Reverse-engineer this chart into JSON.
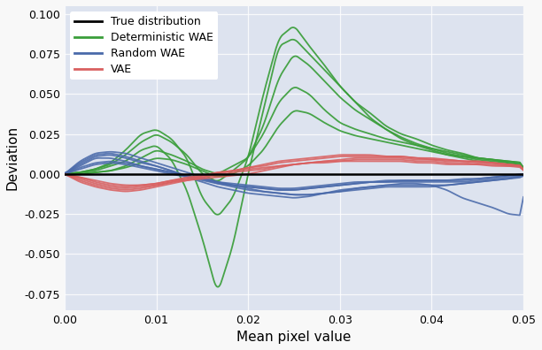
{
  "title": "",
  "xlabel": "Mean pixel value",
  "ylabel": "Deviation",
  "xlim": [
    0.0,
    0.05
  ],
  "ylim": [
    -0.085,
    0.105
  ],
  "yticks": [
    -0.075,
    -0.05,
    -0.025,
    0.0,
    0.025,
    0.05,
    0.075,
    0.1
  ],
  "xticks": [
    0.0,
    0.01,
    0.02,
    0.03,
    0.04,
    0.05
  ],
  "bg_color": "#dde3ef",
  "colors": {
    "true": "#000000",
    "det_wae": "#3a9e3a",
    "rand_wae": "#4a6aaa",
    "vae": "#d96060"
  },
  "legend_labels": [
    "True distribution",
    "Deterministic WAE",
    "Random WAE",
    "VAE"
  ],
  "figsize": [
    6.12,
    3.96
  ],
  "dpi": 100,
  "green_curves": [
    [
      0.0,
      0.001,
      0.002,
      0.005,
      0.008,
      0.015,
      0.018,
      0.009,
      -0.01,
      -0.04,
      -0.075,
      -0.045,
      0.0,
      0.04,
      0.08,
      0.085,
      0.075,
      0.065,
      0.055,
      0.045,
      0.035,
      0.028,
      0.022,
      0.018,
      0.015,
      0.012,
      0.01,
      0.008,
      0.007,
      0.006,
      0.005
    ],
    [
      0.0,
      0.001,
      0.003,
      0.007,
      0.015,
      0.025,
      0.028,
      0.022,
      0.01,
      -0.015,
      -0.027,
      -0.015,
      0.01,
      0.05,
      0.085,
      0.093,
      0.08,
      0.068,
      0.055,
      0.045,
      0.038,
      0.03,
      0.025,
      0.022,
      0.018,
      0.015,
      0.013,
      0.01,
      0.009,
      0.007,
      0.006
    ],
    [
      0.0,
      0.0,
      0.001,
      0.002,
      0.005,
      0.01,
      0.015,
      0.012,
      0.008,
      0.003,
      0.0,
      0.005,
      0.01,
      0.025,
      0.045,
      0.055,
      0.05,
      0.04,
      0.032,
      0.028,
      0.025,
      0.022,
      0.02,
      0.018,
      0.016,
      0.014,
      0.012,
      0.01,
      0.009,
      0.008,
      0.007
    ],
    [
      0.0,
      0.001,
      0.003,
      0.006,
      0.012,
      0.02,
      0.025,
      0.02,
      0.012,
      0.0,
      -0.005,
      0.002,
      0.01,
      0.03,
      0.06,
      0.075,
      0.068,
      0.058,
      0.048,
      0.04,
      0.034,
      0.028,
      0.023,
      0.019,
      0.016,
      0.013,
      0.011,
      0.009,
      0.008,
      0.007,
      0.006
    ],
    [
      0.0,
      0.0,
      0.001,
      0.002,
      0.004,
      0.007,
      0.01,
      0.009,
      0.006,
      0.002,
      -0.002,
      0.0,
      0.005,
      0.015,
      0.03,
      0.04,
      0.038,
      0.032,
      0.027,
      0.024,
      0.022,
      0.02,
      0.018,
      0.016,
      0.014,
      0.012,
      0.011,
      0.01,
      0.009,
      0.008,
      0.007
    ]
  ],
  "blue_curves": [
    [
      0.0,
      0.005,
      0.01,
      0.01,
      0.008,
      0.005,
      0.003,
      0.001,
      -0.001,
      -0.003,
      -0.005,
      -0.007,
      -0.008,
      -0.009,
      -0.01,
      -0.01,
      -0.009,
      -0.008,
      -0.007,
      -0.006,
      -0.005,
      -0.005,
      -0.005,
      -0.005,
      -0.005,
      -0.005,
      -0.005,
      -0.004,
      -0.003,
      -0.002,
      -0.001
    ],
    [
      0.0,
      0.007,
      0.012,
      0.013,
      0.011,
      0.008,
      0.005,
      0.002,
      -0.002,
      -0.005,
      -0.008,
      -0.01,
      -0.012,
      -0.013,
      -0.014,
      -0.015,
      -0.014,
      -0.012,
      -0.01,
      -0.009,
      -0.008,
      -0.007,
      -0.007,
      -0.007,
      -0.007,
      -0.007,
      -0.006,
      -0.005,
      -0.004,
      -0.003,
      -0.001
    ],
    [
      0.0,
      0.003,
      0.006,
      0.007,
      0.006,
      0.004,
      0.002,
      0.0,
      -0.002,
      -0.004,
      -0.006,
      -0.007,
      -0.008,
      -0.009,
      -0.01,
      -0.01,
      -0.009,
      -0.008,
      -0.007,
      -0.006,
      -0.005,
      -0.005,
      -0.004,
      -0.004,
      -0.004,
      -0.004,
      -0.004,
      -0.003,
      -0.002,
      -0.001,
      0.0
    ],
    [
      0.0,
      0.008,
      0.013,
      0.014,
      0.013,
      0.01,
      0.007,
      0.004,
      0.001,
      -0.002,
      -0.005,
      -0.007,
      -0.009,
      -0.011,
      -0.012,
      -0.013,
      -0.013,
      -0.012,
      -0.011,
      -0.01,
      -0.009,
      -0.008,
      -0.008,
      -0.008,
      -0.008,
      -0.007,
      -0.006,
      -0.005,
      -0.004,
      -0.003,
      -0.002
    ],
    [
      0.0,
      0.004,
      0.007,
      0.008,
      0.007,
      0.005,
      0.003,
      0.001,
      -0.001,
      -0.003,
      -0.005,
      -0.006,
      -0.007,
      -0.008,
      -0.009,
      -0.009,
      -0.008,
      -0.007,
      -0.006,
      -0.005,
      -0.005,
      -0.004,
      -0.004,
      -0.004,
      -0.004,
      -0.004,
      -0.003,
      -0.003,
      -0.002,
      -0.001,
      0.0
    ],
    [
      0.0,
      0.006,
      0.011,
      0.012,
      0.01,
      0.007,
      0.005,
      0.002,
      -0.001,
      -0.003,
      -0.006,
      -0.008,
      -0.01,
      -0.011,
      -0.012,
      -0.013,
      -0.013,
      -0.012,
      -0.011,
      -0.009,
      -0.008,
      -0.007,
      -0.006,
      -0.006,
      -0.007,
      -0.01,
      -0.015,
      -0.018,
      -0.021,
      -0.025,
      -0.026
    ]
  ],
  "red_curves": [
    [
      0.0,
      -0.003,
      -0.006,
      -0.008,
      -0.009,
      -0.008,
      -0.007,
      -0.005,
      -0.004,
      -0.003,
      -0.002,
      -0.001,
      0.0,
      0.002,
      0.004,
      0.006,
      0.007,
      0.008,
      0.009,
      0.01,
      0.01,
      0.01,
      0.01,
      0.009,
      0.009,
      0.008,
      0.008,
      0.008,
      0.007,
      0.006,
      0.005
    ],
    [
      0.0,
      -0.004,
      -0.007,
      -0.009,
      -0.01,
      -0.009,
      -0.007,
      -0.005,
      -0.003,
      -0.001,
      0.001,
      0.002,
      0.004,
      0.005,
      0.007,
      0.008,
      0.009,
      0.01,
      0.011,
      0.011,
      0.011,
      0.011,
      0.011,
      0.01,
      0.009,
      0.009,
      0.008,
      0.007,
      0.007,
      0.006,
      0.005
    ],
    [
      0.0,
      -0.002,
      -0.004,
      -0.006,
      -0.007,
      -0.007,
      -0.006,
      -0.004,
      -0.003,
      -0.002,
      -0.001,
      0.001,
      0.002,
      0.003,
      0.005,
      0.006,
      0.007,
      0.008,
      0.008,
      0.009,
      0.009,
      0.009,
      0.009,
      0.008,
      0.008,
      0.007,
      0.007,
      0.006,
      0.006,
      0.005,
      0.005
    ],
    [
      0.0,
      -0.005,
      -0.008,
      -0.01,
      -0.011,
      -0.01,
      -0.008,
      -0.006,
      -0.004,
      -0.002,
      0.0,
      0.002,
      0.004,
      0.006,
      0.008,
      0.009,
      0.01,
      0.011,
      0.012,
      0.012,
      0.012,
      0.011,
      0.011,
      0.01,
      0.01,
      0.009,
      0.008,
      0.008,
      0.007,
      0.006,
      0.005
    ],
    [
      0.0,
      -0.002,
      -0.005,
      -0.007,
      -0.008,
      -0.007,
      -0.006,
      -0.004,
      -0.002,
      -0.001,
      0.001,
      0.002,
      0.003,
      0.004,
      0.005,
      0.006,
      0.007,
      0.007,
      0.008,
      0.008,
      0.008,
      0.008,
      0.008,
      0.007,
      0.007,
      0.006,
      0.006,
      0.006,
      0.005,
      0.005,
      0.004
    ]
  ]
}
